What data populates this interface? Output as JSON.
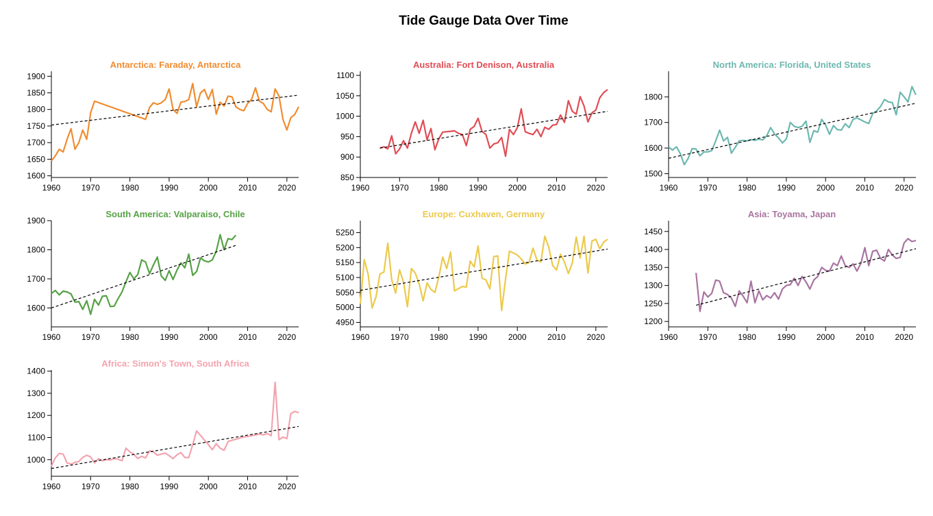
{
  "title": "Tide Gauge Data Over Time",
  "chart_data": [
    {
      "type": "line",
      "title": "Antarctica: Faraday, Antarctica",
      "color": "#f08c30",
      "xticks": [
        "1960",
        "1970",
        "1980",
        "1990",
        "2000",
        "2010",
        "2020"
      ],
      "yticks": [
        "1600",
        "1650",
        "1700",
        "1750",
        "1800",
        "1850",
        "1900"
      ],
      "xlim": [
        1960,
        2023
      ],
      "ylim": [
        1595,
        1915
      ],
      "series": [
        {
          "x": [
            1960,
            1961,
            1962,
            1963,
            1964,
            1965,
            1966,
            1967,
            1968,
            1969,
            1970,
            1971,
            1984,
            1985,
            1986,
            1987,
            1988,
            1989,
            1990,
            1991,
            1992,
            1993,
            1994,
            1995,
            1996,
            1997,
            1998,
            1999,
            2000,
            2001,
            2002,
            2003,
            2004,
            2005,
            2006,
            2007,
            2008,
            2009,
            2010,
            2011,
            2012,
            2013,
            2014,
            2015,
            2016,
            2017,
            2018,
            2019,
            2020,
            2021,
            2022,
            2023
          ],
          "y": [
            1645,
            1660,
            1680,
            1672,
            1710,
            1742,
            1680,
            1700,
            1738,
            1710,
            1790,
            1825,
            1770,
            1806,
            1820,
            1815,
            1820,
            1830,
            1862,
            1800,
            1788,
            1822,
            1824,
            1830,
            1878,
            1808,
            1850,
            1860,
            1830,
            1860,
            1786,
            1822,
            1810,
            1840,
            1838,
            1808,
            1800,
            1796,
            1818,
            1830,
            1865,
            1825,
            1818,
            1800,
            1793,
            1862,
            1840,
            1770,
            1738,
            1775,
            1785,
            1808
          ]
        }
      ],
      "trend": [
        [
          1960,
          1753
        ],
        [
          2023,
          1843
        ]
      ]
    },
    {
      "type": "line",
      "title": "Australia: Fort Denison, Australia",
      "color": "#e04d55",
      "xticks": [
        "1960",
        "1970",
        "1980",
        "1990",
        "2000",
        "2010",
        "2020"
      ],
      "yticks": [
        "850",
        "900",
        "950",
        "1000",
        "1050",
        "1100"
      ],
      "xlim": [
        1960,
        2023
      ],
      "ylim": [
        850,
        1110
      ],
      "series": [
        {
          "x": [
            1965,
            1966,
            1967,
            1968,
            1969,
            1970,
            1971,
            1972,
            1973,
            1974,
            1975,
            1976,
            1977,
            1978,
            1979,
            1980,
            1981,
            1982,
            1983,
            1984,
            1985,
            1986,
            1987,
            1988,
            1989,
            1990,
            1991,
            1992,
            1993,
            1994,
            1995,
            1996,
            1997,
            1998,
            1999,
            2000,
            2001,
            2002,
            2003,
            2004,
            2005,
            2006,
            2007,
            2008,
            2009,
            2010,
            2011,
            2012,
            2013,
            2014,
            2015,
            2016,
            2017,
            2018,
            2019,
            2020,
            2021,
            2022,
            2023
          ],
          "y": [
            922,
            925,
            920,
            952,
            908,
            920,
            940,
            922,
            958,
            986,
            958,
            990,
            942,
            970,
            918,
            945,
            961,
            962,
            963,
            964,
            958,
            955,
            928,
            968,
            975,
            995,
            963,
            955,
            922,
            932,
            935,
            948,
            902,
            968,
            955,
            972,
            1018,
            962,
            958,
            955,
            968,
            950,
            973,
            968,
            978,
            980,
            1003,
            985,
            1038,
            1012,
            1005,
            1048,
            1025,
            986,
            1008,
            1015,
            1045,
            1058,
            1065
          ]
        }
      ],
      "trend": [
        [
          1965,
          922
        ],
        [
          2023,
          1012
        ]
      ]
    },
    {
      "type": "line",
      "title": "North America: Florida, United States",
      "color": "#6cb8b0",
      "xticks": [
        "1960",
        "1970",
        "1980",
        "1990",
        "2000",
        "2010",
        "2020"
      ],
      "yticks": [
        "1500",
        "1600",
        "1700",
        "1800"
      ],
      "xlim": [
        1960,
        2023
      ],
      "ylim": [
        1485,
        1900
      ],
      "series": [
        {
          "x": [
            1960,
            1961,
            1962,
            1963,
            1964,
            1965,
            1966,
            1967,
            1968,
            1969,
            1970,
            1971,
            1972,
            1973,
            1974,
            1975,
            1976,
            1977,
            1978,
            1979,
            1980,
            1981,
            1982,
            1983,
            1984,
            1985,
            1986,
            1987,
            1988,
            1989,
            1990,
            1991,
            1992,
            1993,
            1994,
            1995,
            1996,
            1997,
            1998,
            1999,
            2000,
            2001,
            2002,
            2003,
            2004,
            2005,
            2006,
            2007,
            2008,
            2009,
            2010,
            2011,
            2012,
            2013,
            2014,
            2015,
            2016,
            2017,
            2018,
            2019,
            2020,
            2021,
            2022,
            2023
          ],
          "y": [
            1605,
            1592,
            1605,
            1578,
            1535,
            1560,
            1598,
            1596,
            1570,
            1585,
            1585,
            1590,
            1628,
            1670,
            1628,
            1642,
            1580,
            1603,
            1628,
            1630,
            1628,
            1633,
            1630,
            1635,
            1632,
            1648,
            1680,
            1655,
            1640,
            1620,
            1636,
            1700,
            1685,
            1680,
            1685,
            1705,
            1622,
            1668,
            1662,
            1712,
            1690,
            1654,
            1688,
            1672,
            1670,
            1695,
            1680,
            1712,
            1718,
            1710,
            1702,
            1696,
            1735,
            1745,
            1762,
            1790,
            1780,
            1778,
            1730,
            1818,
            1800,
            1780,
            1840,
            1808
          ]
        }
      ],
      "trend": [
        [
          1960,
          1560
        ],
        [
          2023,
          1775
        ]
      ]
    },
    {
      "type": "line",
      "title": "South America: Valparaiso, Chile",
      "color": "#55a245",
      "xticks": [
        "1960",
        "1970",
        "1980",
        "1990",
        "2000",
        "2010",
        "2020"
      ],
      "yticks": [
        "1600",
        "1700",
        "1800",
        "1900"
      ],
      "xlim": [
        1960,
        2023
      ],
      "ylim": [
        1535,
        1900
      ],
      "series": [
        {
          "x": [
            1960,
            1961,
            1962,
            1963,
            1964,
            1965,
            1966,
            1967,
            1968,
            1969,
            1970,
            1971,
            1972,
            1973,
            1974,
            1975,
            1976,
            1977,
            1978,
            1979,
            1980,
            1981,
            1982,
            1983,
            1984,
            1985,
            1986,
            1987,
            1988,
            1989,
            1990,
            1991,
            1992,
            1993,
            1994,
            1995,
            1996,
            1997,
            1998,
            1999,
            2000,
            2001,
            2002,
            2003,
            2004,
            2005,
            2006,
            2007
          ],
          "y": [
            1650,
            1660,
            1645,
            1658,
            1655,
            1648,
            1620,
            1622,
            1595,
            1625,
            1578,
            1630,
            1610,
            1640,
            1642,
            1605,
            1606,
            1632,
            1655,
            1690,
            1722,
            1700,
            1715,
            1765,
            1758,
            1718,
            1748,
            1775,
            1710,
            1695,
            1728,
            1698,
            1730,
            1755,
            1738,
            1785,
            1712,
            1725,
            1772,
            1762,
            1758,
            1765,
            1795,
            1852,
            1800,
            1838,
            1835,
            1850
          ]
        }
      ],
      "trend": [
        [
          1960,
          1600
        ],
        [
          2007,
          1815
        ]
      ]
    },
    {
      "type": "line",
      "title": "Europe: Cuxhaven, Germany",
      "color": "#ecc94b",
      "xticks": [
        "1960",
        "1970",
        "1980",
        "1990",
        "2000",
        "2010",
        "2020"
      ],
      "yticks": [
        "4950",
        "5000",
        "5050",
        "5100",
        "5150",
        "5200",
        "5250"
      ],
      "xlim": [
        1960,
        2023
      ],
      "ylim": [
        4935,
        5290
      ],
      "series": [
        {
          "x": [
            1960,
            1961,
            1962,
            1963,
            1964,
            1965,
            1966,
            1967,
            1968,
            1969,
            1970,
            1971,
            1972,
            1973,
            1974,
            1975,
            1976,
            1977,
            1978,
            1979,
            1980,
            1981,
            1982,
            1983,
            1984,
            1985,
            1986,
            1987,
            1988,
            1989,
            1990,
            1991,
            1992,
            1993,
            1994,
            1995,
            1996,
            1997,
            1998,
            1999,
            2000,
            2001,
            2002,
            2003,
            2004,
            2005,
            2006,
            2007,
            2008,
            2009,
            2010,
            2011,
            2012,
            2013,
            2014,
            2015,
            2016,
            2017,
            2018,
            2019,
            2020,
            2021,
            2022,
            2023
          ],
          "y": [
            5012,
            5160,
            5110,
            4998,
            5035,
            5112,
            5118,
            5215,
            5092,
            5048,
            5125,
            5085,
            5002,
            5130,
            5115,
            5078,
            5022,
            5082,
            5060,
            5050,
            5102,
            5168,
            5130,
            5185,
            5055,
            5063,
            5070,
            5068,
            5155,
            5135,
            5205,
            5098,
            5092,
            5062,
            5170,
            5172,
            4990,
            5095,
            5188,
            5182,
            5175,
            5162,
            5145,
            5150,
            5198,
            5158,
            5152,
            5238,
            5202,
            5140,
            5125,
            5178,
            5152,
            5113,
            5148,
            5235,
            5165,
            5238,
            5115,
            5222,
            5228,
            5196,
            5218,
            5228
          ]
        }
      ],
      "trend": [
        [
          1960,
          5057
        ],
        [
          2023,
          5195
        ]
      ]
    },
    {
      "type": "line",
      "title": "Asia: Toyama, Japan",
      "color": "#a874a0",
      "xticks": [
        "1960",
        "1970",
        "1980",
        "1990",
        "2000",
        "2010",
        "2020"
      ],
      "yticks": [
        "1200",
        "1250",
        "1300",
        "1350",
        "1400",
        "1450"
      ],
      "xlim": [
        1960,
        2023
      ],
      "ylim": [
        1185,
        1480
      ],
      "series": [
        {
          "x": [
            1967,
            1968,
            1969,
            1970,
            1971,
            1972,
            1973,
            1974,
            1975,
            1976,
            1977,
            1978,
            1979,
            1980,
            1981,
            1982,
            1983,
            1984,
            1985,
            1986,
            1987,
            1988,
            1989,
            1990,
            1991,
            1992,
            1993,
            1994,
            1995,
            1996,
            1997,
            1998,
            1999,
            2000,
            2001,
            2002,
            2003,
            2004,
            2005,
            2006,
            2007,
            2008,
            2009,
            2010,
            2011,
            2012,
            2013,
            2014,
            2015,
            2016,
            2017,
            2018,
            2019,
            2020,
            2021,
            2022,
            2023
          ],
          "y": [
            1335,
            1228,
            1282,
            1268,
            1278,
            1315,
            1312,
            1280,
            1275,
            1265,
            1242,
            1285,
            1270,
            1252,
            1312,
            1252,
            1285,
            1260,
            1272,
            1265,
            1280,
            1262,
            1290,
            1300,
            1302,
            1320,
            1300,
            1325,
            1310,
            1290,
            1315,
            1325,
            1350,
            1342,
            1340,
            1362,
            1355,
            1382,
            1355,
            1350,
            1360,
            1340,
            1362,
            1405,
            1355,
            1395,
            1398,
            1375,
            1368,
            1400,
            1385,
            1375,
            1378,
            1418,
            1430,
            1422,
            1425
          ]
        }
      ],
      "trend": [
        [
          1967,
          1245
        ],
        [
          2023,
          1402
        ]
      ]
    },
    {
      "type": "line",
      "title": "Africa: Simon's Town, South Africa",
      "color": "#f4a3ae",
      "xticks": [
        "1960",
        "1970",
        "1980",
        "1990",
        "2000",
        "2010",
        "2020"
      ],
      "yticks": [
        "1000",
        "1100",
        "1200",
        "1300",
        "1400"
      ],
      "xlim": [
        1960,
        2023
      ],
      "ylim": [
        925,
        1405
      ],
      "series": [
        {
          "x": [
            1960,
            1961,
            1962,
            1963,
            1964,
            1965,
            1966,
            1967,
            1968,
            1969,
            1970,
            1971,
            1972,
            1973,
            1974,
            1975,
            1976,
            1977,
            1978,
            1979,
            1980,
            1981,
            1982,
            1983,
            1984,
            1985,
            1986,
            1987,
            1988,
            1989,
            1990,
            1991,
            1992,
            1993,
            1994,
            1995,
            1996,
            1997,
            1998,
            1999,
            2000,
            2001,
            2002,
            2003,
            2004,
            2005,
            2006,
            2007,
            2008,
            2009,
            2010,
            2011,
            2012,
            2013,
            2014,
            2015,
            2016,
            2017,
            2018,
            2019,
            2020,
            2021,
            2022,
            2023
          ],
          "y": [
            970,
            1008,
            1028,
            1025,
            985,
            980,
            988,
            992,
            1010,
            1020,
            1012,
            985,
            1005,
            995,
            1000,
            998,
            1005,
            1002,
            995,
            1052,
            1035,
            1025,
            1005,
            1015,
            1008,
            1040,
            1035,
            1020,
            1025,
            1030,
            1018,
            1005,
            1022,
            1032,
            1010,
            1010,
            1068,
            1130,
            1110,
            1088,
            1068,
            1045,
            1072,
            1052,
            1042,
            1082,
            1088,
            1092,
            1098,
            1102,
            1105,
            1108,
            1112,
            1115,
            1112,
            1118,
            1108,
            1350,
            1090,
            1102,
            1095,
            1208,
            1218,
            1212
          ]
        }
      ],
      "trend": [
        [
          1960,
          960
        ],
        [
          2023,
          1150
        ]
      ]
    }
  ]
}
